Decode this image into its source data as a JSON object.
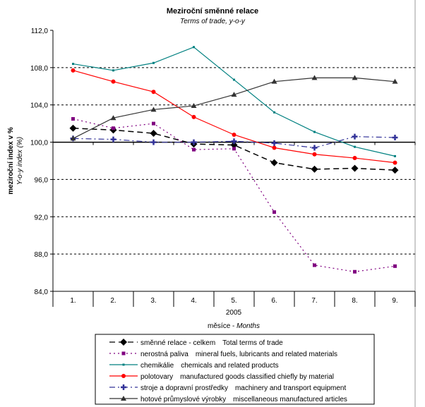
{
  "chart_data": {
    "type": "line",
    "title": "Meziroční směnné relace",
    "subtitle": "Terms of trade, y-o-y",
    "ylabel": "meziroční index v %",
    "ylabel_en": "Y-o-y index (%)",
    "xlabel_year": "2005",
    "xlabel": "měsíce - ",
    "xlabel_en": "Months",
    "categories": [
      "1.",
      "2.",
      "3.",
      "4.",
      "5.",
      "6.",
      "7.",
      "8.",
      "9."
    ],
    "ylim": [
      84,
      112
    ],
    "yticks": [
      "84,0",
      "88,0",
      "92,0",
      "96,0",
      "100,0",
      "104,0",
      "108,0",
      "112,0"
    ],
    "grid": "dashed horizontal at 88, 92, 96, 104, 108",
    "legend_position": "bottom",
    "series": [
      {
        "name": "směnné relace - celkem",
        "name_en": "Total terms of trade",
        "color": "#000000",
        "style": "long-dash",
        "marker": "diamond",
        "values": [
          101.5,
          101.3,
          100.95,
          99.8,
          99.7,
          97.8,
          97.1,
          97.2,
          97.0
        ]
      },
      {
        "name": "nerostná paliva",
        "name_en": "mineral fuels, lubricants and related materials",
        "color": "#800080",
        "style": "dotted",
        "marker": "square",
        "values": [
          102.5,
          101.5,
          102.0,
          99.2,
          99.3,
          92.5,
          86.8,
          86.1,
          86.7
        ]
      },
      {
        "name": "chemikálie",
        "name_en": "chemicals and related products",
        "color": "#008080",
        "style": "solid",
        "marker": "small-square",
        "values": [
          108.4,
          107.7,
          108.5,
          110.2,
          106.7,
          103.2,
          101.1,
          99.5,
          98.5
        ]
      },
      {
        "name": "polotovary",
        "name_en": "manufactured goods classified chiefly by material",
        "color": "#ff0000",
        "style": "solid",
        "marker": "circle",
        "values": [
          107.7,
          106.5,
          105.4,
          102.7,
          100.8,
          99.4,
          98.7,
          98.3,
          97.8
        ]
      },
      {
        "name": "stroje a dopravní prostředky",
        "name_en": "machinery and transport equipment",
        "color": "#333399",
        "style": "dash-dot",
        "marker": "star",
        "values": [
          100.4,
          100.3,
          100.0,
          100.0,
          100.1,
          99.9,
          99.4,
          100.6,
          100.5
        ]
      },
      {
        "name": "hotové průmyslové výrobky",
        "name_en": "miscellaneous manufactured articles",
        "color": "#333333",
        "style": "solid",
        "marker": "triangle",
        "values": [
          100.4,
          102.6,
          103.5,
          103.9,
          105.1,
          106.5,
          106.9,
          106.9,
          106.5
        ]
      }
    ]
  }
}
